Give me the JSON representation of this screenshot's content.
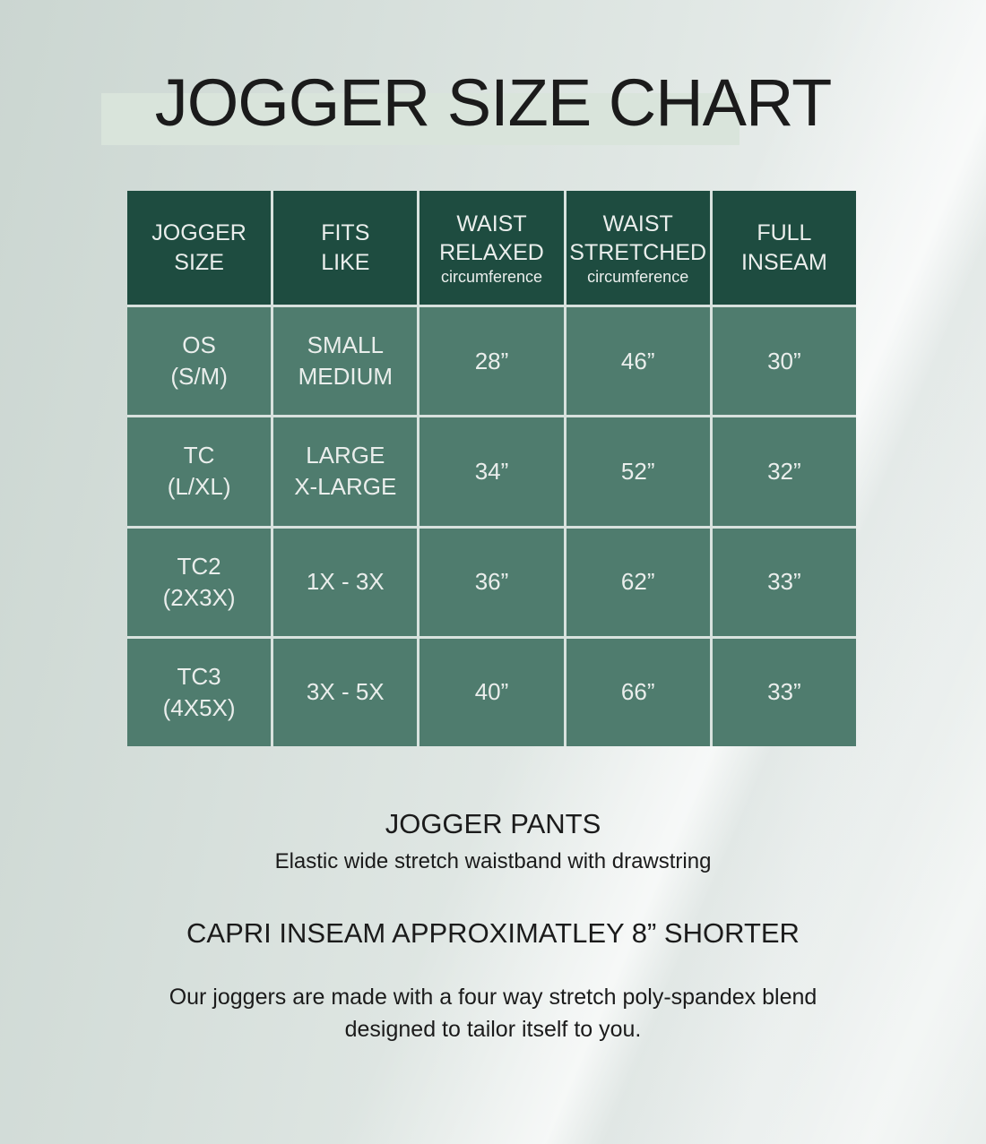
{
  "page": {
    "title": "JOGGER SIZE CHART"
  },
  "table": {
    "headers": [
      {
        "label": "JOGGER\nSIZE",
        "sub": ""
      },
      {
        "label": "FITS\nLIKE",
        "sub": ""
      },
      {
        "label": "WAIST\nRELAXED",
        "sub": "circumference"
      },
      {
        "label": "WAIST\nSTRETCHED",
        "sub": "circumference"
      },
      {
        "label": "FULL\nINSEAM",
        "sub": ""
      }
    ],
    "rows": [
      {
        "size": "OS\n(S/M)",
        "fits": "SMALL\nMEDIUM",
        "relaxed": "28”",
        "stretched": "46”",
        "inseam": "30”"
      },
      {
        "size": "TC\n(L/XL)",
        "fits": "LARGE\nX-LARGE",
        "relaxed": "34”",
        "stretched": "52”",
        "inseam": "32”"
      },
      {
        "size": "TC2\n(2X3X)",
        "fits": "1X - 3X",
        "relaxed": "36”",
        "stretched": "62”",
        "inseam": "33”"
      },
      {
        "size": "TC3\n(4X5X)",
        "fits": "3X - 5X",
        "relaxed": "40”",
        "stretched": "66”",
        "inseam": "33”"
      }
    ]
  },
  "footer": {
    "product_title": "JOGGER PANTS",
    "product_subtitle": "Elastic wide stretch waistband with drawstring",
    "capri_note": "CAPRI INSEAM APPROXIMATLEY 8” SHORTER",
    "material_note": "Our joggers are made with a four way stretch poly-spandex blend\ndesigned to tailor itself to you."
  },
  "colors": {
    "header_bg": "#1e4c40",
    "body_bg": "#4f7c6e",
    "grid": "#d8e2de",
    "title_highlight": "#d9e4db",
    "text_dark": "#1b1b1b",
    "text_light": "#eaeeec"
  },
  "chart_data": {
    "type": "table",
    "title": "JOGGER SIZE CHART",
    "columns": [
      "JOGGER SIZE",
      "FITS LIKE",
      "WAIST RELAXED circumference",
      "WAIST STRETCHED circumference",
      "FULL INSEAM"
    ],
    "rows": [
      [
        "OS (S/M)",
        "SMALL MEDIUM",
        "28”",
        "46”",
        "30”"
      ],
      [
        "TC (L/XL)",
        "LARGE X-LARGE",
        "34”",
        "52”",
        "32”"
      ],
      [
        "TC2 (2X3X)",
        "1X - 3X",
        "36”",
        "62”",
        "33”"
      ],
      [
        "TC3 (4X5X)",
        "3X - 5X",
        "40”",
        "66”",
        "33”"
      ]
    ],
    "notes": [
      "JOGGER PANTS",
      "Elastic wide stretch waistband with drawstring",
      "CAPRI INSEAM APPROXIMATLEY 8” SHORTER",
      "Our joggers are made with a four way stretch poly-spandex blend designed to tailor itself to you."
    ]
  }
}
